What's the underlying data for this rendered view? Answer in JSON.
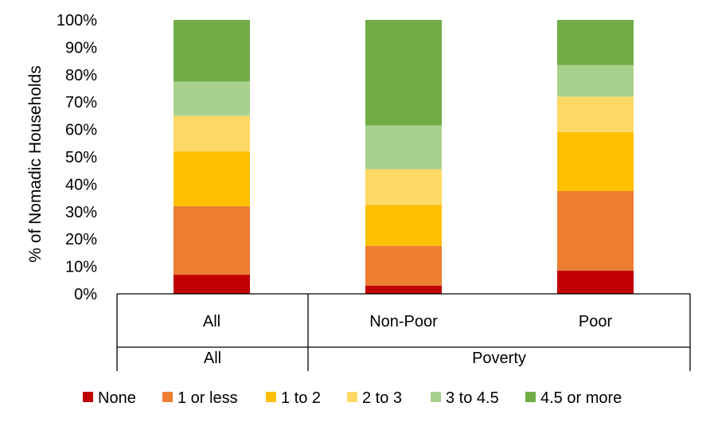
{
  "chart_data": {
    "type": "bar",
    "stacked": true,
    "normalized": true,
    "title": "",
    "xlabel": "",
    "ylabel": "% of Nomadic Households",
    "ylim": [
      0,
      100
    ],
    "yticks": [
      "0%",
      "10%",
      "20%",
      "30%",
      "40%",
      "50%",
      "60%",
      "70%",
      "80%",
      "90%",
      "100%"
    ],
    "grid": false,
    "legend_position": "bottom",
    "categories": [
      "All",
      "Non-Poor",
      "Poor"
    ],
    "category_groups": [
      {
        "label": "All",
        "members": [
          "All"
        ]
      },
      {
        "label": "Poverty",
        "members": [
          "Non-Poor",
          "Poor"
        ]
      }
    ],
    "series": [
      {
        "name": "None",
        "color": "#C00000",
        "values": [
          7,
          3,
          8.5
        ]
      },
      {
        "name": "1 or less",
        "color": "#ED7D31",
        "values": [
          25,
          14.5,
          29
        ]
      },
      {
        "name": "1 to 2",
        "color": "#FFC000",
        "values": [
          20,
          15,
          21.5
        ]
      },
      {
        "name": "2 to 3",
        "color": "#FFD966",
        "values": [
          13,
          13,
          13
        ]
      },
      {
        "name": "3 to 4.5",
        "color": "#A9D18E",
        "values": [
          12.5,
          16,
          11.5
        ]
      },
      {
        "name": "4.5 or more",
        "color": "#70AD47",
        "values": [
          22.5,
          38.5,
          16.5
        ]
      }
    ]
  }
}
